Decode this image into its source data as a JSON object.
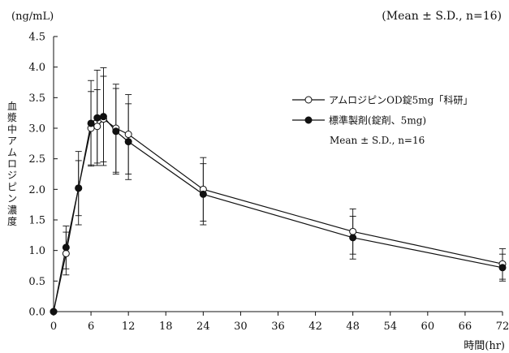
{
  "chart_data": {
    "type": "line",
    "unit_label": "(ng/mL)",
    "corner_note": "(Mean ± S.D., n=16)",
    "xlabel": "時間(hr)",
    "ylabel": "血漿中アムロジピン濃度",
    "xlim": [
      0,
      72
    ],
    "ylim": [
      0,
      4.5
    ],
    "x_ticks": [
      0,
      6,
      12,
      18,
      24,
      30,
      36,
      42,
      48,
      54,
      60,
      66,
      72
    ],
    "x_tick_labels": [
      "0",
      "6",
      "12",
      "18",
      "24",
      "30",
      "36",
      "42",
      "48",
      "54",
      "60",
      "66",
      "72"
    ],
    "y_ticks": [
      0,
      0.5,
      1.0,
      1.5,
      2.0,
      2.5,
      3.0,
      3.5,
      4.0,
      4.5
    ],
    "y_tick_labels": [
      "0.0",
      "0.5",
      "1.0",
      "1.5",
      "2.0",
      "2.5",
      "3.0",
      "3.5",
      "4.0",
      "4.5"
    ],
    "grid": false,
    "legend_position": "top-right",
    "legend_note": "Mean ± S.D., n=16",
    "series": [
      {
        "name": "アムロジピンOD錠5mg「科研」",
        "marker": "open-circle",
        "x": [
          0,
          2,
          4,
          6,
          7,
          8,
          10,
          12,
          24,
          48,
          72
        ],
        "y": [
          0.0,
          0.95,
          2.02,
          3.0,
          3.03,
          3.15,
          3.0,
          2.9,
          2.0,
          1.31,
          0.78
        ],
        "sd": [
          0,
          0.35,
          0.45,
          0.6,
          0.6,
          0.7,
          0.72,
          0.65,
          0.52,
          0.37,
          0.25
        ]
      },
      {
        "name": "標準製剤(錠剤、5mg)",
        "marker": "filled-circle",
        "x": [
          0,
          2,
          4,
          6,
          7,
          8,
          10,
          12,
          24,
          48,
          72
        ],
        "y": [
          0.0,
          1.05,
          2.02,
          3.08,
          3.17,
          3.19,
          2.95,
          2.78,
          1.92,
          1.21,
          0.72
        ],
        "sd": [
          0,
          0.35,
          0.6,
          0.7,
          0.78,
          0.8,
          0.7,
          0.62,
          0.5,
          0.35,
          0.22
        ]
      }
    ]
  }
}
